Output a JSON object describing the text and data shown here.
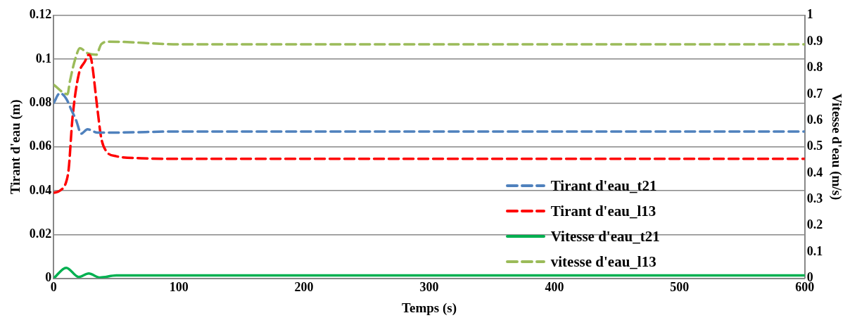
{
  "chart_data": {
    "type": "line",
    "xlabel": "Temps (s)",
    "ylabel": "Tirant d'eau (m)",
    "y2label": "Vitesse d'eau (m/s)",
    "xlim": [
      0,
      600
    ],
    "xticks": [
      0,
      100,
      200,
      300,
      400,
      500,
      600
    ],
    "ylim": [
      0,
      0.12
    ],
    "yticks": [
      0,
      0.02,
      0.04,
      0.06,
      0.08,
      0.1,
      0.12
    ],
    "y2lim": [
      0,
      1
    ],
    "y2ticks": [
      0,
      0.1,
      0.2,
      0.3,
      0.4,
      0.5,
      0.6,
      0.7,
      0.8,
      0.9,
      1
    ],
    "grid": "y",
    "legend": "right",
    "marker": "none",
    "series": [
      {
        "name": "Tirant d'eau_t21",
        "color": "#4f81bd",
        "line_style": "dashed",
        "x": [
          0,
          5,
          10,
          14,
          18,
          22,
          27,
          35,
          47,
          100,
          600
        ],
        "values": [
          0.08,
          0.0845,
          0.082,
          0.077,
          0.072,
          0.066,
          0.068,
          0.0665,
          0.0665,
          0.067,
          0.067
        ]
      },
      {
        "name": "Tirant d'eau_l13",
        "color": "#ff0000",
        "line_style": "dashed",
        "x": [
          0,
          5,
          10,
          12,
          15,
          20,
          25,
          28,
          30,
          35,
          38,
          42,
          50,
          70,
          100,
          600
        ],
        "values": [
          0.039,
          0.04,
          0.044,
          0.05,
          0.073,
          0.093,
          0.099,
          0.102,
          0.1,
          0.077,
          0.064,
          0.058,
          0.0557,
          0.0548,
          0.0545,
          0.0545
        ]
      },
      {
        "name": "Vitesse d'eau_t21",
        "color": "#00b050",
        "line_style": "solid",
        "axis": "y2",
        "x": [
          0,
          10,
          20,
          28,
          37,
          50,
          100,
          600
        ],
        "values": [
          0,
          0.04,
          0.005,
          0.018,
          0.003,
          0.011,
          0.011,
          0.011
        ]
      },
      {
        "name": "vitesse d'eau_l13",
        "color": "#9bbb59",
        "line_style": "dashed",
        "axis": "y2",
        "x": [
          0,
          11,
          13,
          17,
          21,
          27,
          34,
          38,
          44,
          100,
          600
        ],
        "values": [
          0.736,
          0.7,
          0.75,
          0.83,
          0.875,
          0.856,
          0.85,
          0.89,
          0.9,
          0.89,
          0.89
        ]
      }
    ]
  }
}
